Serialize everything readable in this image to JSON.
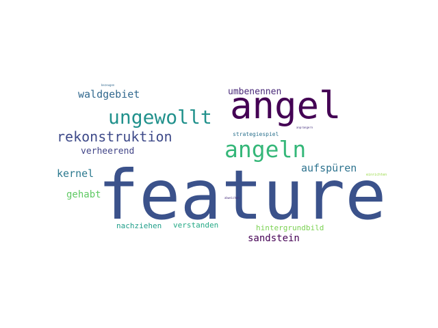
{
  "word_cloud": {
    "words": [
      {
        "text": "feature",
        "color": "#3b528b"
      },
      {
        "text": "angel",
        "color": "#440154"
      },
      {
        "text": "angeln",
        "color": "#35b779"
      },
      {
        "text": "ungewollt",
        "color": "#21918c"
      },
      {
        "text": "rekonstruktion",
        "color": "#3e4a89"
      },
      {
        "text": "waldgebiet",
        "color": "#31688e"
      },
      {
        "text": "umbenennen",
        "color": "#482878"
      },
      {
        "text": "aufspüren",
        "color": "#2c728e"
      },
      {
        "text": "verheerend",
        "color": "#414487"
      },
      {
        "text": "kernel",
        "color": "#2a788e"
      },
      {
        "text": "gehabt",
        "color": "#5ec962"
      },
      {
        "text": "sandstein",
        "color": "#440154"
      },
      {
        "text": "nachziehen",
        "color": "#1f9e89"
      },
      {
        "text": "verstanden",
        "color": "#22a884"
      },
      {
        "text": "hintergrundbild",
        "color": "#7ad151"
      },
      {
        "text": "strategiespiel",
        "color": "#2c728e"
      },
      {
        "text": "bezeugen",
        "color": "#31688e"
      },
      {
        "text": "anprangern",
        "color": "#46327e"
      },
      {
        "text": "abweichen",
        "color": "#472d7b"
      },
      {
        "text": "einrichten",
        "color": "#95d840"
      }
    ]
  }
}
